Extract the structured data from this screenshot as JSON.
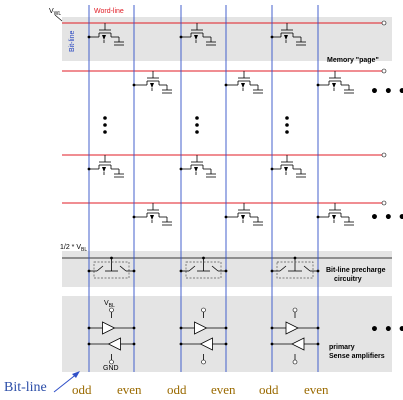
{
  "labels": {
    "vwl": "V",
    "vwl_sub": "WL",
    "vbl": "V",
    "vbl_sub": "BL",
    "word_line": "Word-line",
    "bit_line_vertical": "Bit-line",
    "memory_page": "Memory \"page\"",
    "half_vbl": "1/2 * V",
    "half_vbl_sub": "BL",
    "precharge_line1": "Bit-line precharge",
    "precharge_line2": "circuitry",
    "sense_line1": "primary",
    "sense_line2": "Sense amplifiers",
    "sa_vbl": "V",
    "sa_vbl_sub": "BL",
    "sa_gnd": "GND",
    "bottom_bitline": "Bit-line",
    "ellipsis_h": "• • •",
    "ellipsis_v": "•"
  },
  "bitline_labels": [
    "odd",
    "even",
    "odd",
    "even",
    "odd",
    "even"
  ],
  "colors": {
    "word_line": "#e01b24",
    "bit_line": "#3050c8",
    "band": "#e4e4e4",
    "precharge_box": "#555555",
    "arrow": "#3050c8"
  }
}
